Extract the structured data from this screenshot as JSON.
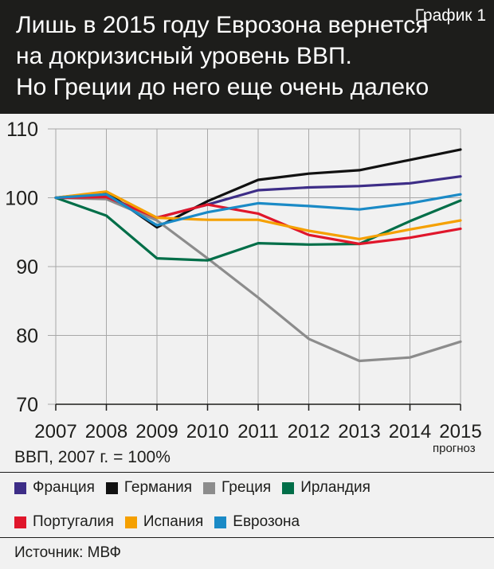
{
  "header": {
    "title_lines": [
      "Лишь в 2015 году Еврозона вернется",
      "на докризисный уровень ВВП.",
      "Но Греции до него еще очень далеко"
    ],
    "chart_tag": "График 1"
  },
  "axis_note": "ВВП, 2007 г. = 100%",
  "forecast_note": "прогноз",
  "source": "Источник: МВФ",
  "chart_data": {
    "type": "line",
    "title": "Лишь в 2015 году Еврозона вернется на докризисный уровень ВВП. Но Греции до него еще очень далеко",
    "xlabel": "",
    "ylabel": "ВВП, 2007 г. = 100%",
    "x": [
      "2007",
      "2008",
      "2009",
      "2010",
      "2011",
      "2012",
      "2013",
      "2014",
      "2015"
    ],
    "ylim": [
      70,
      110
    ],
    "yticks": [
      "70",
      "80",
      "90",
      "100",
      "110"
    ],
    "grid": true,
    "series": [
      {
        "name": "Франция",
        "color": "#3d2d87",
        "values": [
          100,
          100.2,
          97.1,
          99.0,
          101.1,
          101.5,
          101.7,
          102.1,
          103.1
        ]
      },
      {
        "name": "Германия",
        "color": "#111111",
        "values": [
          100,
          100.8,
          95.7,
          99.5,
          102.6,
          103.5,
          104.0,
          105.5,
          107.0
        ]
      },
      {
        "name": "Греция",
        "color": "#8c8c8c",
        "values": [
          100,
          99.8,
          96.7,
          91.2,
          85.5,
          79.5,
          76.3,
          76.8,
          79.1
        ]
      },
      {
        "name": "Ирландия",
        "color": "#006e48",
        "values": [
          100,
          97.4,
          91.2,
          90.9,
          93.4,
          93.2,
          93.3,
          96.6,
          99.6
        ]
      },
      {
        "name": "Португалия",
        "color": "#e0162b",
        "values": [
          100,
          100.1,
          97.1,
          99.0,
          97.7,
          94.6,
          93.3,
          94.2,
          95.5
        ]
      },
      {
        "name": "Испания",
        "color": "#f5a000",
        "values": [
          100,
          100.9,
          97.1,
          96.8,
          96.8,
          95.2,
          94.0,
          95.4,
          96.7
        ]
      },
      {
        "name": "Еврозона",
        "color": "#1a8ac6",
        "values": [
          100,
          100.5,
          96.0,
          97.9,
          99.2,
          98.8,
          98.3,
          99.2,
          100.5
        ]
      }
    ]
  }
}
